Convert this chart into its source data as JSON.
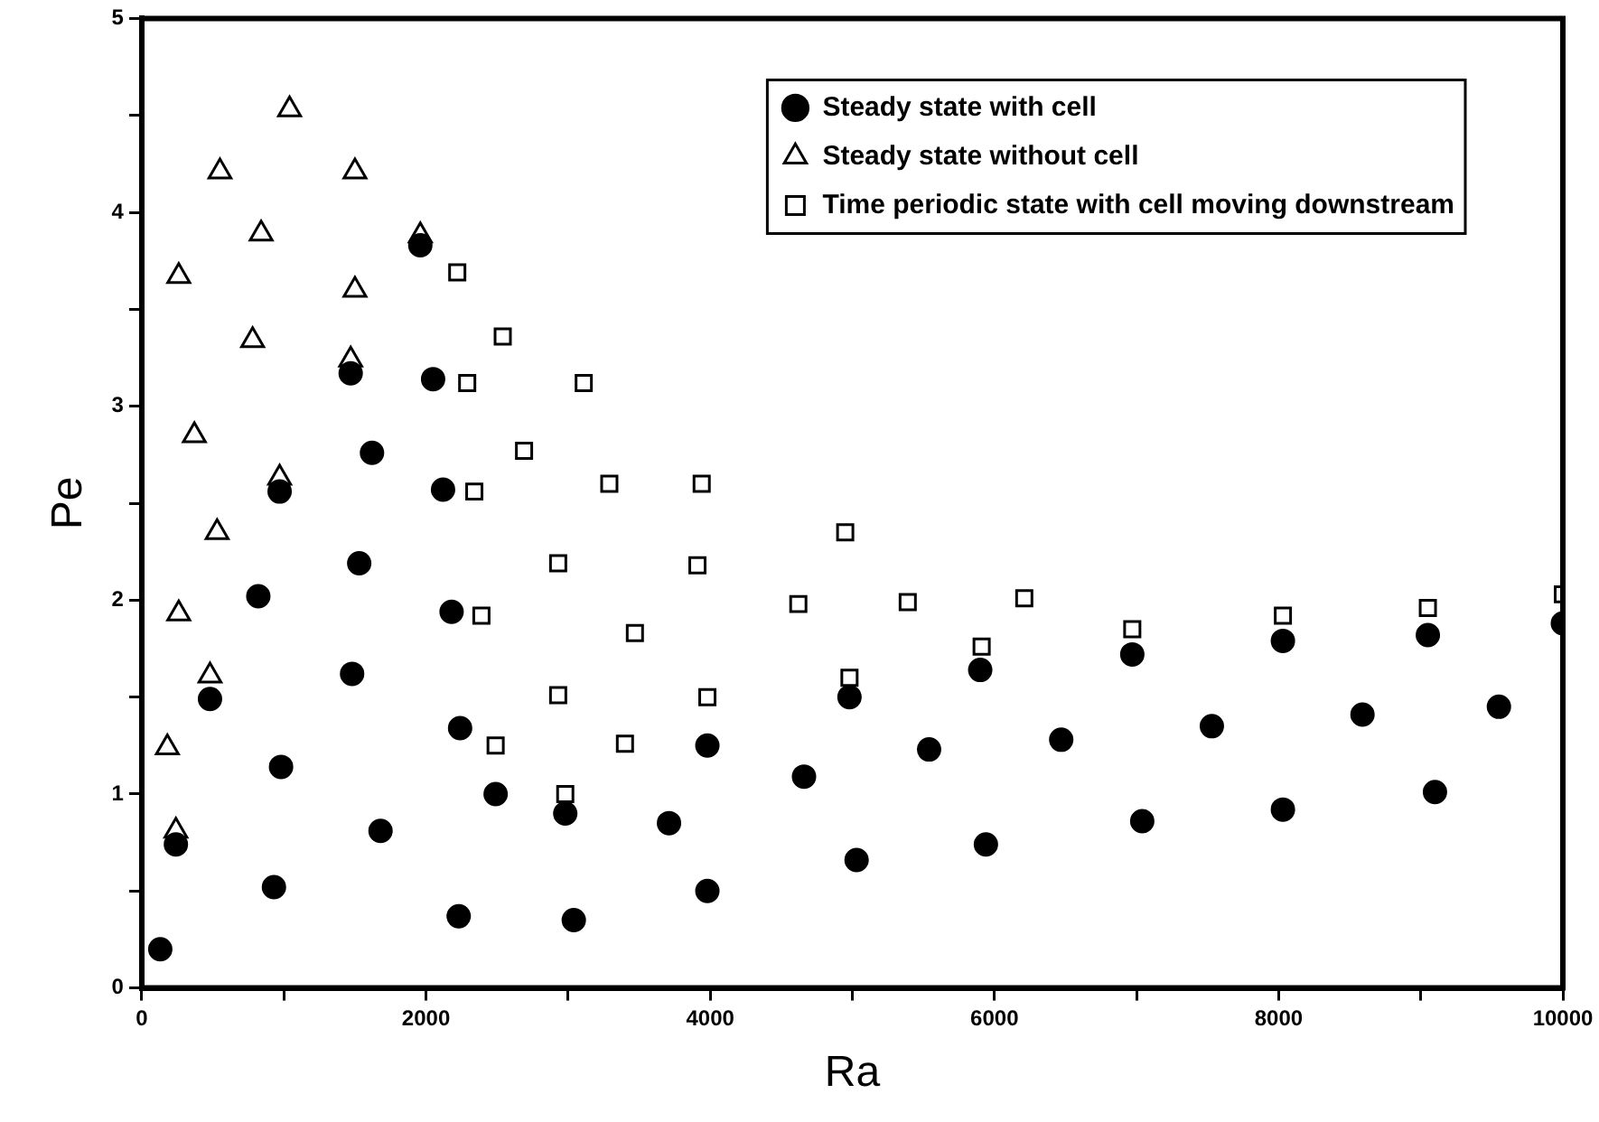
{
  "chart_data": {
    "type": "scatter",
    "xlabel": "Ra",
    "ylabel": "Pe",
    "xlim": [
      0,
      10000
    ],
    "ylim": [
      0,
      5
    ],
    "xticks": [
      0,
      {
        "value": 1000,
        "label": null
      },
      2000,
      {
        "value": 3000,
        "label": null
      },
      4000,
      {
        "value": 5000,
        "label": null
      },
      6000,
      {
        "value": 7000,
        "label": null
      },
      8000,
      {
        "value": 9000,
        "label": null
      },
      10000
    ],
    "yticks": [
      0,
      {
        "value": 0.5,
        "label": null
      },
      1,
      {
        "value": 1.5,
        "label": null
      },
      2,
      {
        "value": 2.5,
        "label": null
      },
      3,
      {
        "value": 3.5,
        "label": null
      },
      4,
      {
        "value": 4.5,
        "label": null
      },
      5
    ],
    "grid": false,
    "legend": "top right",
    "series": [
      {
        "name": "Steady state with cell",
        "color": "#000000",
        "marker": "circle",
        "x": [
          130,
          240,
          480,
          820,
          930,
          980,
          970,
          1470,
          1480,
          1530,
          1620,
          1680,
          1960,
          2050,
          2120,
          2180,
          2230,
          2240,
          2490,
          2980,
          3040,
          3710,
          3980,
          3980,
          4660,
          4980,
          5030,
          5540,
          5900,
          5940,
          6470,
          6970,
          7040,
          7530,
          8030,
          8030,
          8590,
          9050,
          9100,
          9550,
          10000
        ],
        "values": [
          0.2,
          0.74,
          1.49,
          2.02,
          0.52,
          1.14,
          2.56,
          3.17,
          1.62,
          2.19,
          2.76,
          0.81,
          3.83,
          3.14,
          2.57,
          1.94,
          0.37,
          1.34,
          1.0,
          0.9,
          0.35,
          0.85,
          1.25,
          0.5,
          1.09,
          1.5,
          0.66,
          1.23,
          1.64,
          0.74,
          1.28,
          1.72,
          0.86,
          1.35,
          1.79,
          0.92,
          1.41,
          1.82,
          1.01,
          1.45,
          1.88
        ]
      },
      {
        "name": "Steady state without cell",
        "color": "#000000",
        "marker": "triangle",
        "x": [
          1040,
          550,
          1500,
          840,
          260,
          1500,
          780,
          1960,
          1470,
          370,
          970,
          530,
          260,
          480,
          180,
          240
        ],
        "values": [
          4.53,
          4.21,
          4.21,
          3.89,
          3.67,
          3.6,
          3.34,
          3.88,
          3.24,
          2.85,
          2.63,
          2.35,
          1.93,
          1.61,
          1.24,
          0.81
        ]
      },
      {
        "name": "Time periodic state with cell moving downstream",
        "color": "#000000",
        "marker": "square",
        "x": [
          2220,
          2540,
          2290,
          3110,
          2690,
          2340,
          2930,
          2390,
          2930,
          2490,
          2980,
          3290,
          3940,
          4950,
          3910,
          4620,
          5390,
          6210,
          3470,
          5910,
          4980,
          3980,
          3400,
          6970,
          8030,
          9050,
          10000
        ],
        "values": [
          3.69,
          3.36,
          3.12,
          3.12,
          2.77,
          2.56,
          2.19,
          1.92,
          1.51,
          1.25,
          1.0,
          2.6,
          2.6,
          2.35,
          2.18,
          1.98,
          1.99,
          2.01,
          1.83,
          1.76,
          1.6,
          1.5,
          1.26,
          1.85,
          1.92,
          1.96,
          2.03
        ]
      }
    ]
  }
}
